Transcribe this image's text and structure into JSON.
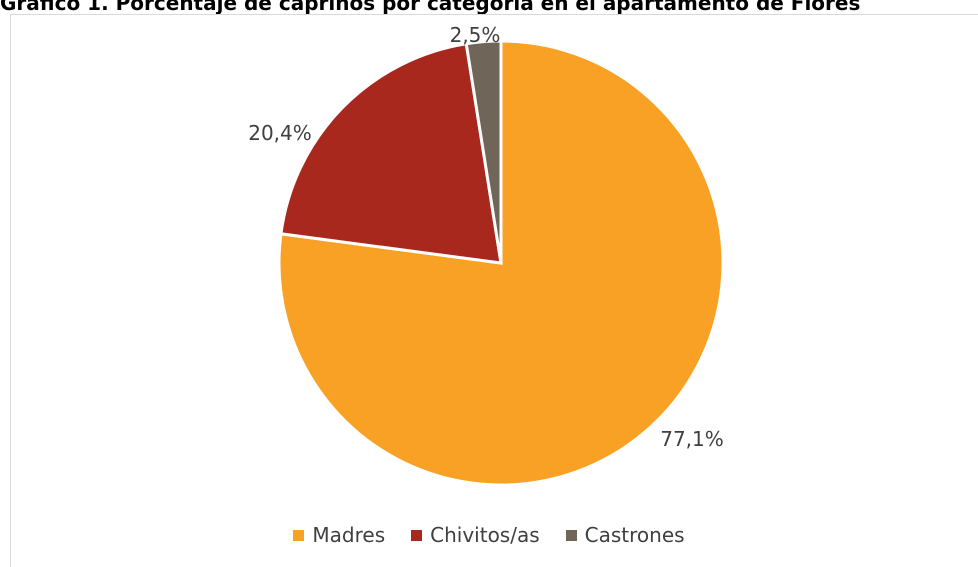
{
  "chart_data": {
    "type": "pie",
    "title": "Gráfico 1. Porcentaje de caprinos por categoría en el apartamento de Flores",
    "categories": [
      "Madres",
      "Chivitos/as",
      "Castrones"
    ],
    "values": [
      77.1,
      20.4,
      2.5
    ],
    "labels": [
      "77,1%",
      "20,4%",
      "2,5%"
    ],
    "colors": [
      "#F9A125",
      "#A8281E",
      "#6F6558"
    ],
    "legend_position": "bottom"
  }
}
